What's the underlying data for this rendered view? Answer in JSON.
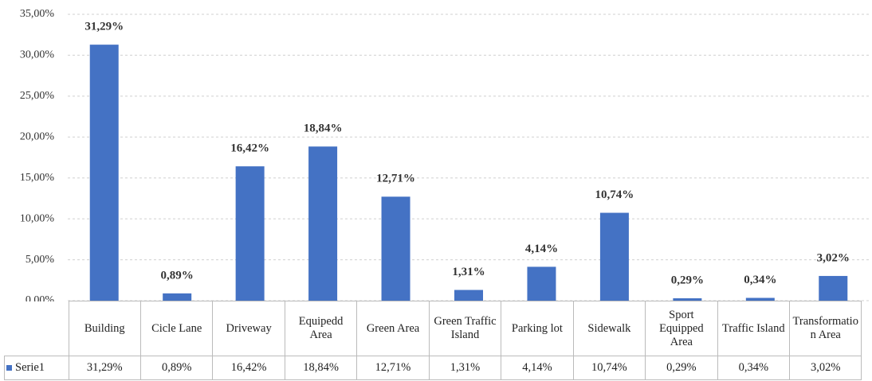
{
  "chart_data": {
    "type": "bar",
    "categories": [
      "Building",
      "Cicle Lane",
      "Driveway",
      "Equipedd Area",
      "Green Area",
      "Green Traffic Island",
      "Parking lot",
      "Sidewalk",
      "Sport Equipped Area",
      "Traffic Island",
      "Transformation Area"
    ],
    "series": [
      {
        "name": "Serie1",
        "color": "#4472c4",
        "values": [
          31.29,
          0.89,
          16.42,
          18.84,
          12.71,
          1.31,
          4.14,
          10.74,
          0.29,
          0.34,
          3.02
        ],
        "value_labels": [
          "31,29%",
          "0,89%",
          "16,42%",
          "18,84%",
          "12,71%",
          "1,31%",
          "4,14%",
          "10,74%",
          "0,29%",
          "0,34%",
          "3,02%"
        ]
      }
    ],
    "ylim": [
      0,
      35
    ],
    "yticks": [
      {
        "value": 0,
        "label": "0,00%"
      },
      {
        "value": 5,
        "label": "5,00%"
      },
      {
        "value": 10,
        "label": "10,00%"
      },
      {
        "value": 15,
        "label": "15,00%"
      },
      {
        "value": 20,
        "label": "20,00%"
      },
      {
        "value": 25,
        "label": "25,00%"
      },
      {
        "value": 30,
        "label": "30,00%"
      },
      {
        "value": 35,
        "label": "35,00%"
      }
    ],
    "grid": true,
    "data_table": true
  }
}
